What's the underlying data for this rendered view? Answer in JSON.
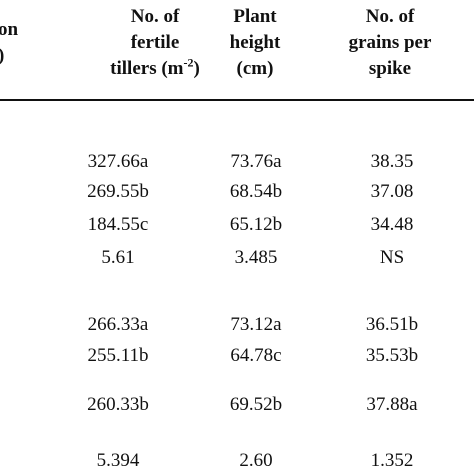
{
  "header": {
    "col0": [
      "on",
      ")"
    ],
    "col1": [
      "No. of",
      "fertile",
      "tillers (m",
      "-2",
      ")"
    ],
    "col2": [
      "Plant",
      "height",
      "(cm)"
    ],
    "col3": [
      "No. of",
      "grains per",
      "spike"
    ]
  },
  "rows": [
    [
      "327.66a",
      "73.76a",
      "38.35"
    ],
    [
      "269.55b",
      "68.54b",
      "37.08"
    ],
    [
      "184.55c",
      "65.12b",
      "34.48"
    ],
    [
      "5.61",
      "3.485",
      "NS"
    ],
    [
      "266.33a",
      "73.12a",
      "36.51b"
    ],
    [
      "255.11b",
      "64.78c",
      "35.53b"
    ],
    [
      "260.33b",
      "69.52b",
      "37.88a"
    ],
    [
      "5.394",
      "2.60",
      "1.352"
    ]
  ]
}
